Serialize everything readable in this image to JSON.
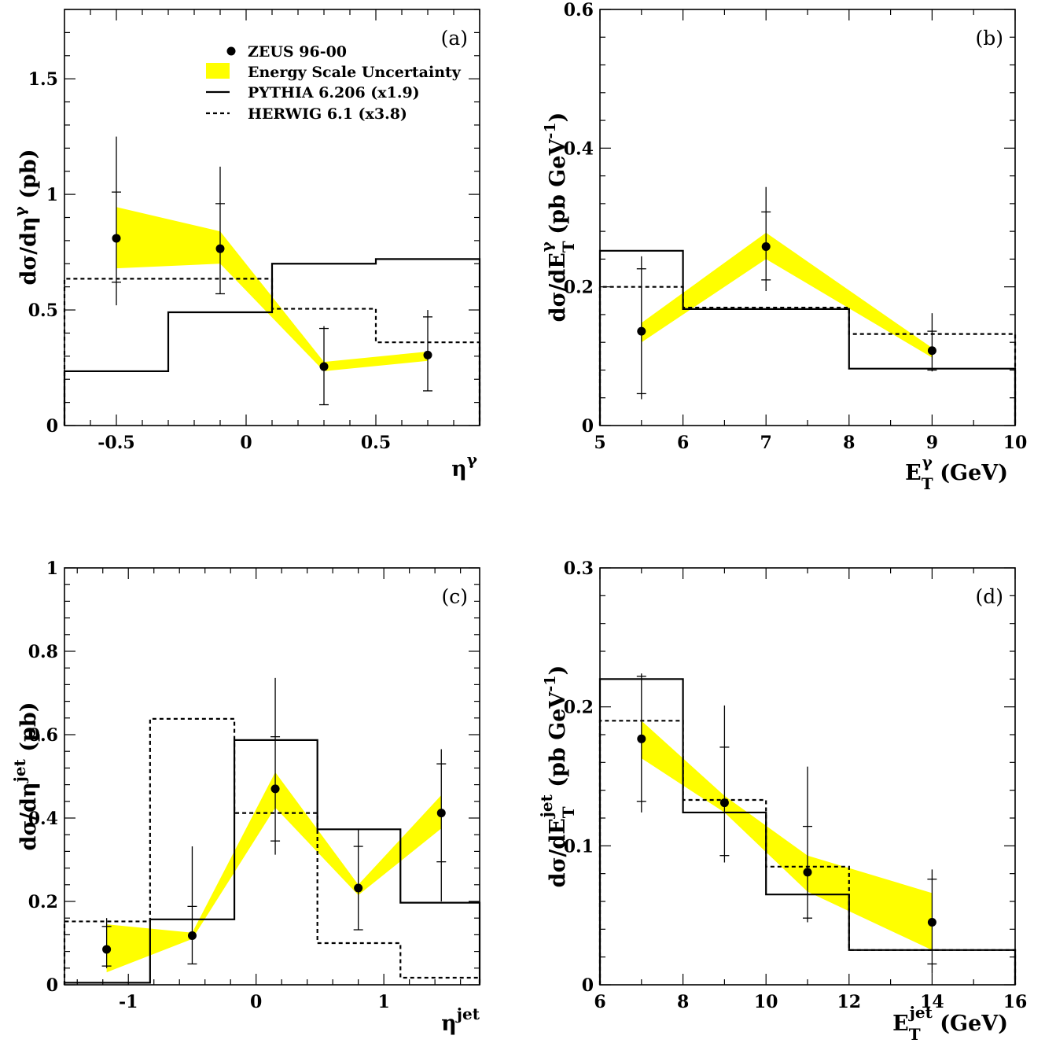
{
  "chart_data": [
    {
      "panel": "(a)",
      "type": "line",
      "xlabel": "η",
      "xlabel_sup": "γ",
      "ylabel": "dσ/dη",
      "ylabel_sup": "γ",
      "ylabel_suffix": " (pb)",
      "xlim": [
        -0.7,
        0.9
      ],
      "ylim": [
        0,
        1.8
      ],
      "xticks": [
        {
          "v": -0.5,
          "label": "-0.5"
        },
        {
          "v": 0,
          "label": "0"
        },
        {
          "v": 0.5,
          "label": "0.5"
        }
      ],
      "yticks": [
        {
          "v": 0,
          "label": "0"
        },
        {
          "v": 0.5,
          "label": "0.5"
        },
        {
          "v": 1,
          "label": "1"
        },
        {
          "v": 1.5,
          "label": "1.5"
        }
      ],
      "legend": {
        "data": "ZEUS 96-00",
        "band": "Energy Scale Uncertainty",
        "pythia": "PYTHIA 6.206 (x1.9)",
        "herwig": "HERWIG 6.1 (x3.8)",
        "band_color": "#ffff00"
      },
      "data_points": [
        {
          "x": -0.5,
          "y": 0.81,
          "stat_lo": 0.62,
          "stat_hi": 1.01,
          "tot_lo": 0.52,
          "tot_hi": 1.25
        },
        {
          "x": -0.1,
          "y": 0.765,
          "stat_lo": 0.57,
          "stat_hi": 0.96,
          "tot_lo": 0.57,
          "tot_hi": 1.12
        },
        {
          "x": 0.3,
          "y": 0.255,
          "stat_lo": 0.09,
          "stat_hi": 0.42,
          "tot_lo": 0.09,
          "tot_hi": 0.43
        },
        {
          "x": 0.7,
          "y": 0.305,
          "stat_lo": 0.15,
          "stat_hi": 0.47,
          "tot_lo": 0.15,
          "tot_hi": 0.5
        }
      ],
      "band": {
        "x": [
          -0.5,
          -0.1,
          0.3,
          0.7
        ],
        "lo": [
          0.68,
          0.7,
          0.235,
          0.28
        ],
        "hi": [
          0.945,
          0.84,
          0.275,
          0.32
        ]
      },
      "pythia": {
        "edges": [
          -0.7,
          -0.3,
          0.1,
          0.5,
          0.9
        ],
        "values": [
          0.235,
          0.49,
          0.7,
          0.72
        ]
      },
      "herwig": {
        "edges": [
          -0.7,
          -0.3,
          0.1,
          0.5,
          0.9
        ],
        "values": [
          0.635,
          0.635,
          0.505,
          0.36
        ]
      }
    },
    {
      "panel": "(b)",
      "type": "line",
      "xlabel": "E",
      "xlabel_sub": "T",
      "xlabel_sup": "γ",
      "xlabel_suffix": " (GeV)",
      "ylabel": "dσ/dE",
      "ylabel_sub": "T",
      "ylabel_sup": "γ",
      "ylabel_suffix": " (pb GeV",
      "ylabel_suffix_sup": "-1",
      "ylabel_close": ")",
      "xlim": [
        5,
        10
      ],
      "ylim": [
        0,
        0.6
      ],
      "xticks": [
        {
          "v": 5,
          "label": "5"
        },
        {
          "v": 6,
          "label": "6"
        },
        {
          "v": 7,
          "label": "7"
        },
        {
          "v": 8,
          "label": "8"
        },
        {
          "v": 9,
          "label": "9"
        },
        {
          "v": 10,
          "label": "10"
        }
      ],
      "yticks": [
        {
          "v": 0,
          "label": "0"
        },
        {
          "v": 0.2,
          "label": "0.2"
        },
        {
          "v": 0.4,
          "label": "0.4"
        },
        {
          "v": 0.6,
          "label": "0.6"
        }
      ],
      "data_points": [
        {
          "x": 5.5,
          "y": 0.136,
          "stat_lo": 0.046,
          "stat_hi": 0.226,
          "tot_lo": 0.038,
          "tot_hi": 0.244
        },
        {
          "x": 7,
          "y": 0.258,
          "stat_lo": 0.21,
          "stat_hi": 0.308,
          "tot_lo": 0.194,
          "tot_hi": 0.344
        },
        {
          "x": 9,
          "y": 0.108,
          "stat_lo": 0.08,
          "stat_hi": 0.136,
          "tot_lo": 0.078,
          "tot_hi": 0.162
        }
      ],
      "band": {
        "x": [
          5.5,
          7,
          9
        ],
        "lo": [
          0.12,
          0.24,
          0.098
        ],
        "hi": [
          0.148,
          0.278,
          0.112
        ]
      },
      "pythia": {
        "edges": [
          5,
          6,
          7,
          8,
          10
        ],
        "values": [
          0.252,
          0.168,
          0.168,
          0.082
        ]
      },
      "herwig": {
        "edges": [
          5,
          6,
          7,
          8,
          10
        ],
        "values": [
          0.2,
          0.17,
          0.17,
          0.132
        ]
      }
    },
    {
      "panel": "(c)",
      "type": "line",
      "xlabel": "η",
      "xlabel_sup": "jet",
      "ylabel": "dσ/dη",
      "ylabel_sup": "jet",
      "ylabel_suffix": " (pb)",
      "xlim": [
        -1.5,
        1.75
      ],
      "ylim": [
        0,
        1
      ],
      "xticks": [
        {
          "v": -1,
          "label": "-1"
        },
        {
          "v": 0,
          "label": "0"
        },
        {
          "v": 1,
          "label": "1"
        }
      ],
      "yticks": [
        {
          "v": 0,
          "label": "0"
        },
        {
          "v": 0.2,
          "label": "0.2"
        },
        {
          "v": 0.4,
          "label": "0.4"
        },
        {
          "v": 0.6,
          "label": "0.6"
        },
        {
          "v": 0.8,
          "label": "0.8"
        },
        {
          "v": 1,
          "label": "1"
        }
      ],
      "data_points": [
        {
          "x": -1.17,
          "y": 0.085,
          "stat_lo": 0.045,
          "stat_hi": 0.14,
          "tot_lo": 0.04,
          "tot_hi": 0.16
        },
        {
          "x": -0.5,
          "y": 0.118,
          "stat_lo": 0.05,
          "stat_hi": 0.188,
          "tot_lo": 0.05,
          "tot_hi": 0.332
        },
        {
          "x": 0.15,
          "y": 0.47,
          "stat_lo": 0.345,
          "stat_hi": 0.595,
          "tot_lo": 0.312,
          "tot_hi": 0.736
        },
        {
          "x": 0.8,
          "y": 0.232,
          "stat_lo": 0.132,
          "stat_hi": 0.332,
          "tot_lo": 0.132,
          "tot_hi": 0.372
        },
        {
          "x": 1.45,
          "y": 0.412,
          "stat_lo": 0.295,
          "stat_hi": 0.53,
          "tot_lo": 0.2,
          "tot_hi": 0.565
        }
      ],
      "band": {
        "x": [
          -1.17,
          -0.5,
          0.15,
          0.8,
          1.45
        ],
        "lo": [
          0.03,
          0.11,
          0.425,
          0.215,
          0.375
        ],
        "hi": [
          0.145,
          0.125,
          0.51,
          0.24,
          0.455
        ]
      },
      "pythia": {
        "edges": [
          -1.5,
          -0.83,
          -0.17,
          0.48,
          1.13,
          1.75
        ],
        "values": [
          0.005,
          0.157,
          0.587,
          0.373,
          0.197
        ]
      },
      "herwig": {
        "edges": [
          -1.5,
          -0.83,
          -0.17,
          0.48,
          1.13,
          1.75
        ],
        "values": [
          0.152,
          0.638,
          0.412,
          0.1,
          0.017
        ]
      }
    },
    {
      "panel": "(d)",
      "type": "line",
      "xlabel": "E",
      "xlabel_sub": "T",
      "xlabel_sup": "jet",
      "xlabel_suffix": " (GeV)",
      "ylabel": "dσ/dE",
      "ylabel_sub": "T",
      "ylabel_sup": "jet",
      "ylabel_suffix": " (pb GeV",
      "ylabel_suffix_sup": "-1",
      "ylabel_close": ")",
      "xlim": [
        6,
        16
      ],
      "ylim": [
        0,
        0.3
      ],
      "xticks": [
        {
          "v": 6,
          "label": "6"
        },
        {
          "v": 8,
          "label": "8"
        },
        {
          "v": 10,
          "label": "10"
        },
        {
          "v": 12,
          "label": "12"
        },
        {
          "v": 14,
          "label": "14"
        },
        {
          "v": 16,
          "label": "16"
        }
      ],
      "yticks": [
        {
          "v": 0,
          "label": "0"
        },
        {
          "v": 0.1,
          "label": "0.1"
        },
        {
          "v": 0.2,
          "label": "0.2"
        },
        {
          "v": 0.3,
          "label": "0.3"
        }
      ],
      "data_points": [
        {
          "x": 7,
          "y": 0.177,
          "stat_lo": 0.132,
          "stat_hi": 0.222,
          "tot_lo": 0.124,
          "tot_hi": 0.224
        },
        {
          "x": 9,
          "y": 0.131,
          "stat_lo": 0.093,
          "stat_hi": 0.171,
          "tot_lo": 0.088,
          "tot_hi": 0.201
        },
        {
          "x": 11,
          "y": 0.081,
          "stat_lo": 0.048,
          "stat_hi": 0.114,
          "tot_lo": 0.045,
          "tot_hi": 0.157
        },
        {
          "x": 14,
          "y": 0.045,
          "stat_lo": 0.015,
          "stat_hi": 0.076,
          "tot_lo": 0.008,
          "tot_hi": 0.083
        }
      ],
      "band": {
        "x": [
          7,
          9,
          11,
          14
        ],
        "lo": [
          0.163,
          0.124,
          0.067,
          0.025
        ],
        "hi": [
          0.19,
          0.136,
          0.093,
          0.066
        ]
      },
      "pythia": {
        "edges": [
          6,
          8,
          10,
          12,
          16
        ],
        "values": [
          0.22,
          0.124,
          0.065,
          0.025
        ]
      },
      "herwig": {
        "edges": [
          6,
          8,
          10,
          12,
          16
        ],
        "values": [
          0.19,
          0.133,
          0.085,
          0.025
        ]
      }
    }
  ]
}
